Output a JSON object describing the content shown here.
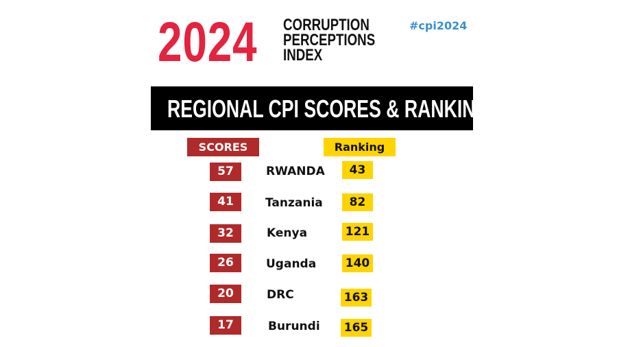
{
  "header": {
    "year": "2024",
    "index_lines": [
      "CORRUPTION",
      "PERCEPTIONS",
      "INDEX"
    ],
    "hashtag": "#cpi2024",
    "brand_red": "#e3233f"
  },
  "banner": {
    "title": "REGIONAL CPI SCORES & RANKING"
  },
  "columns": {
    "scores": "SCORES",
    "ranking": "Ranking"
  },
  "colors": {
    "score_bg": "#b02a2a",
    "rank_bg": "#ffd400",
    "hashtag": "#3a8fd0"
  },
  "rows": [
    {
      "score": "57",
      "country": "RWANDA",
      "rank": "43"
    },
    {
      "score": "41",
      "country": "Tanzania",
      "rank": "82"
    },
    {
      "score": "32",
      "country": "Kenya",
      "rank": "121"
    },
    {
      "score": "26",
      "country": "Uganda",
      "rank": "140"
    },
    {
      "score": "20",
      "country": "DRC",
      "rank": "163"
    },
    {
      "score": "17",
      "country": "Burundi",
      "rank": "165"
    }
  ]
}
